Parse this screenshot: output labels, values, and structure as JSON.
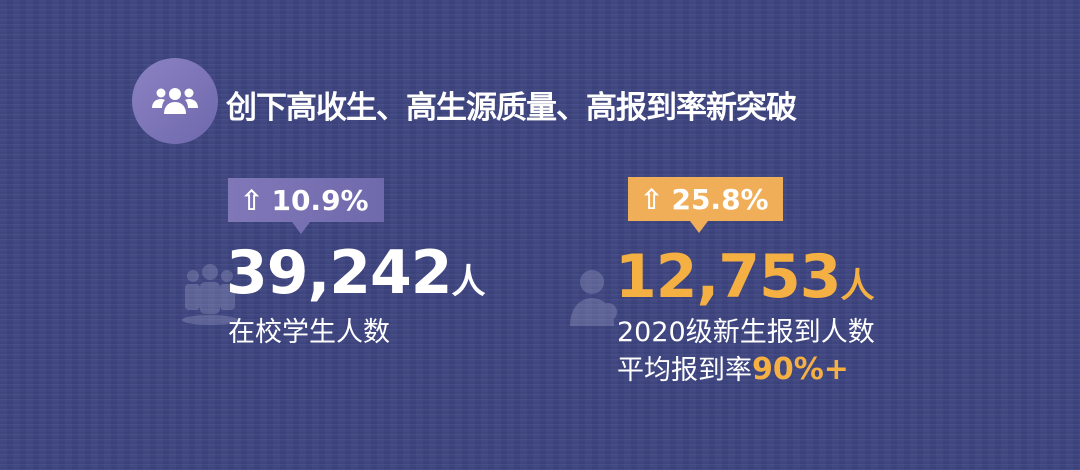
{
  "header": {
    "icon": "users-icon",
    "title": "创下高收生、高生源质量、高报到率新突破"
  },
  "stats": [
    {
      "badge": "10.9%",
      "badge_icon": "arrow-up-icon",
      "value": "39,242",
      "unit": "人",
      "label": "在校学生人数",
      "color": "#ffffff",
      "badge_color": "#7a72b3"
    },
    {
      "badge": "25.8%",
      "badge_icon": "arrow-up-icon",
      "value": "12,753",
      "unit": "人",
      "label": "2020级新生报到人数",
      "label2": "平均报到率",
      "label2_highlight": "90%+",
      "color": "#f5b043",
      "badge_color": "#f0ae58"
    }
  ],
  "colors": {
    "background": "#3e4581",
    "accent": "#f5b043"
  }
}
